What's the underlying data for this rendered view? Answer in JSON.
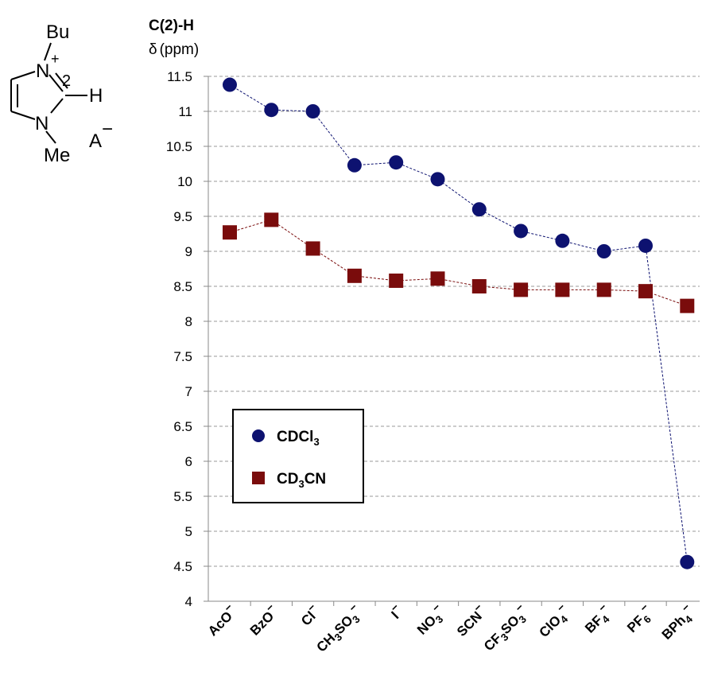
{
  "structure": {
    "substituent_top": "Bu",
    "nitrogen_top": "N",
    "charge": "+",
    "position": "2",
    "hydrogen": "H",
    "nitrogen_bottom": "N",
    "substituent_bottom": "Me",
    "anion": "A",
    "anion_charge": "−"
  },
  "chart_data": {
    "type": "line",
    "title": "C(2)-H",
    "ylabel_symbol": "δ",
    "ylabel_unit": "(ppm)",
    "ylim": [
      4,
      11.5
    ],
    "ytick_step": 0.5,
    "yticks": [
      "4",
      "4.5",
      "5",
      "5.5",
      "6",
      "6.5",
      "7",
      "7.5",
      "8",
      "8.5",
      "9",
      "9.5",
      "10",
      "10.5",
      "11",
      "11.5"
    ],
    "grid": true,
    "categories": [
      {
        "base": "AcO",
        "sub": "",
        "tail": "",
        "sup": "−"
      },
      {
        "base": "BzO",
        "sub": "",
        "tail": "",
        "sup": "−"
      },
      {
        "base": "Cl",
        "sub": "",
        "tail": "",
        "sup": "−"
      },
      {
        "base": "CH",
        "sub": "3",
        "tail": "SO",
        "sub2": "3",
        "sup": "−"
      },
      {
        "base": "I",
        "sub": "",
        "tail": "",
        "sup": "−"
      },
      {
        "base": "NO",
        "sub": "3",
        "tail": "",
        "sup": "−"
      },
      {
        "base": "SCN",
        "sub": "",
        "tail": "",
        "sup": "−"
      },
      {
        "base": "CF",
        "sub": "3",
        "tail": "SO",
        "sub2": "3",
        "sup": "−"
      },
      {
        "base": "ClO",
        "sub": "4",
        "tail": "",
        "sup": "−"
      },
      {
        "base": "BF",
        "sub": "4",
        "tail": "",
        "sup": "−"
      },
      {
        "base": "PF",
        "sub": "6",
        "tail": "",
        "sup": "−"
      },
      {
        "base": "BPh",
        "sub": "4",
        "tail": "",
        "sup": "−"
      }
    ],
    "series": [
      {
        "name": "CDCl",
        "name_sub": "3",
        "name_tail": "",
        "marker": "circle",
        "color": "#0d1270",
        "values": [
          11.38,
          11.02,
          11.0,
          10.23,
          10.27,
          10.03,
          9.6,
          9.29,
          9.15,
          9.0,
          9.08,
          4.56
        ]
      },
      {
        "name": "CD",
        "name_sub": "3",
        "name_tail": "CN",
        "marker": "square",
        "color": "#7a0c0c",
        "values": [
          9.27,
          9.45,
          9.04,
          8.65,
          8.58,
          8.61,
          8.5,
          8.45,
          8.45,
          8.45,
          8.43,
          8.22
        ]
      }
    ],
    "legend_position": "bottom-left"
  }
}
